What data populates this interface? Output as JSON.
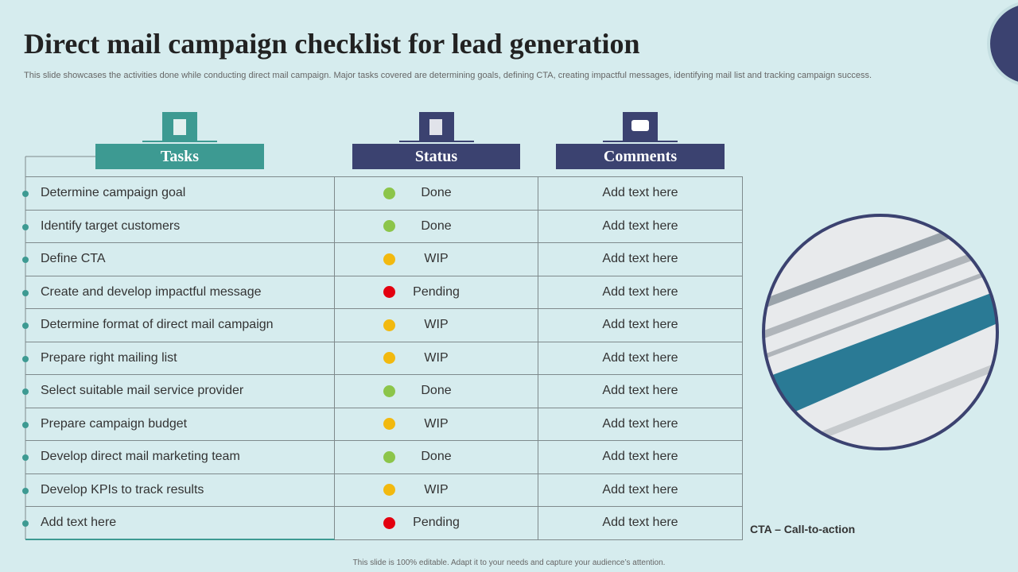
{
  "header": {
    "title": "Direct mail campaign checklist for lead generation",
    "subtitle": "This slide showcases the activities done while conducting direct mail campaign. Major tasks covered are determining goals, defining CTA, creating impactful messages, identifying mail list and tracking campaign success."
  },
  "table": {
    "columns": [
      "Tasks",
      "Status",
      "Comments"
    ],
    "rows": [
      {
        "task": "Determine campaign goal",
        "status": "Done",
        "color": "#8cc54a",
        "comment": "Add text here"
      },
      {
        "task": "Identify  target customers",
        "status": "Done",
        "color": "#8cc54a",
        "comment": "Add text here"
      },
      {
        "task": "Define CTA",
        "status": "WIP",
        "color": "#f2b90f",
        "comment": "Add text here"
      },
      {
        "task": "Create and develop impactful message",
        "status": "Pending",
        "color": "#e3000f",
        "comment": "Add text here"
      },
      {
        "task": "Determine format of direct mail campaign",
        "status": "WIP",
        "color": "#f2b90f",
        "comment": "Add text here"
      },
      {
        "task": "Prepare right mailing list",
        "status": "WIP",
        "color": "#f2b90f",
        "comment": "Add text here"
      },
      {
        "task": "Select suitable mail service provider",
        "status": "Done",
        "color": "#8cc54a",
        "comment": "Add text here"
      },
      {
        "task": "Prepare campaign budget",
        "status": "WIP",
        "color": "#f2b90f",
        "comment": "Add text here"
      },
      {
        "task": "Develop direct mail marketing team",
        "status": "Done",
        "color": "#8cc54a",
        "comment": "Add text here"
      },
      {
        "task": "Develop KPIs to track results",
        "status": "WIP",
        "color": "#f2b90f",
        "comment": "Add text here"
      },
      {
        "task": "Add text here",
        "status": "Pending",
        "color": "#e3000f",
        "comment": "Add text here"
      }
    ]
  },
  "note": "CTA – Call-to-action",
  "footer": "This slide is 100% editable. Adapt it to your needs and capture your audience’s attention."
}
